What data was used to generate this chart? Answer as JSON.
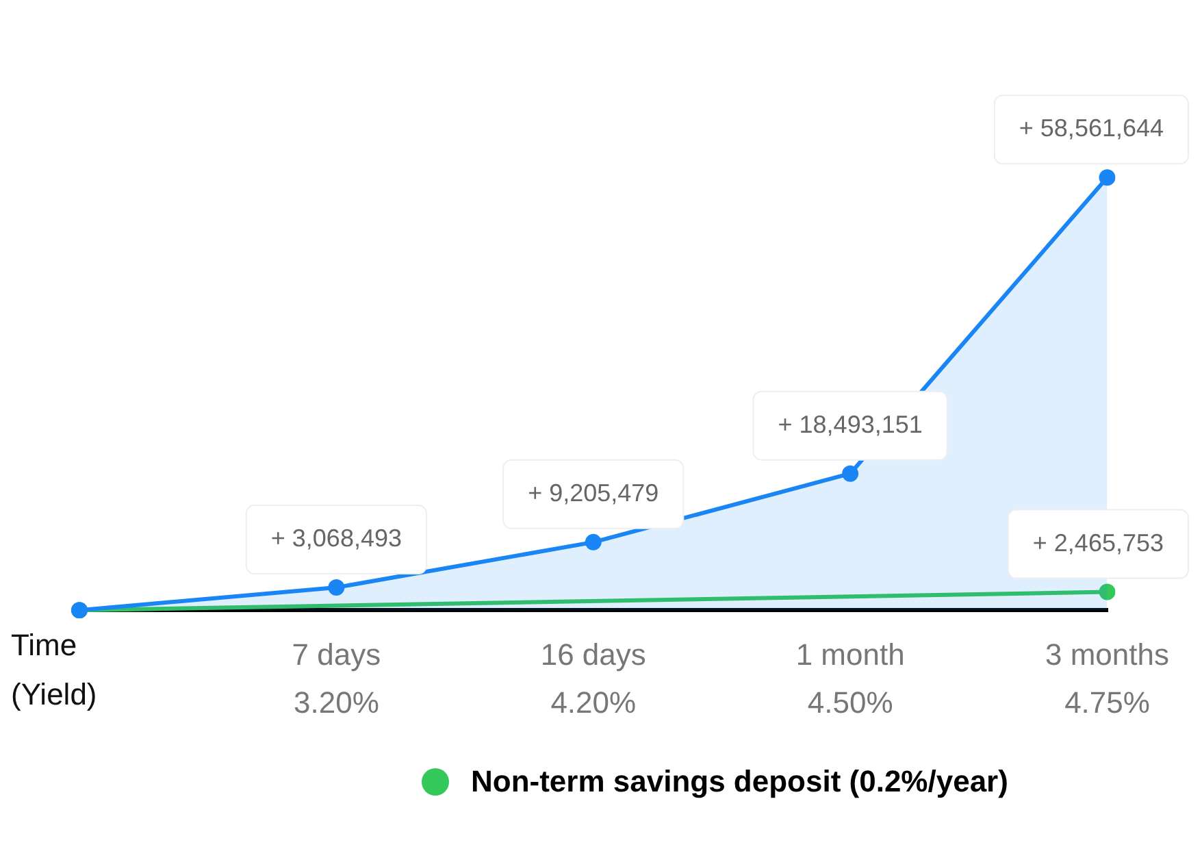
{
  "chart_data": {
    "type": "line",
    "xlabel": "Time\n(Yield)",
    "categories": [
      null,
      "7 days\n3.20%",
      "16 days\n4.20%",
      "1 month\n4.50%",
      "3 months\n4.75%"
    ],
    "series": [
      {
        "type": "area",
        "color": "#1a85f5",
        "values": [
          0,
          3068493,
          9205479,
          18493151,
          58561644
        ],
        "value_labels": [
          null,
          "+ 3,068,493",
          "+ 9,205,479",
          "+ 18,493,151",
          "+ 58,561,644"
        ]
      },
      {
        "type": "line",
        "name": "Non-term savings deposit (0.2%/year)",
        "color": "#34c759",
        "values": [
          0,
          null,
          null,
          null,
          2465753
        ],
        "value_labels": [
          null,
          null,
          null,
          null,
          "+ 2,465,753"
        ]
      }
    ],
    "tick_labels": "x",
    "legend": "bottom",
    "marker": "circle",
    "line_style": "solid"
  }
}
